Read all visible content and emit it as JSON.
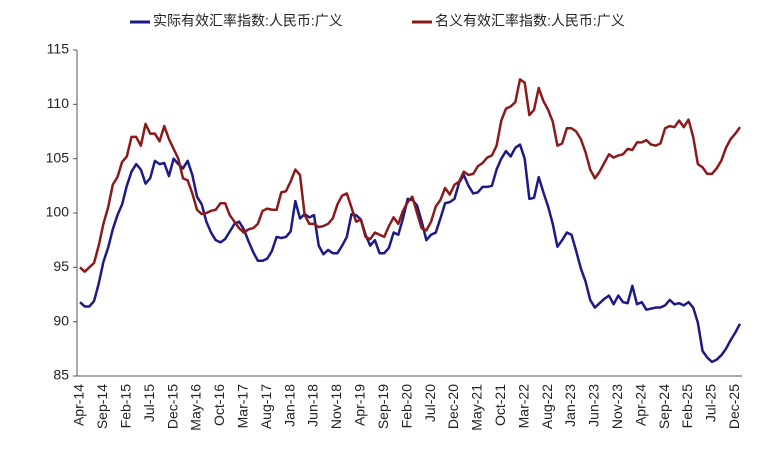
{
  "chart_data": {
    "type": "line",
    "categories": [
      "Apr-14",
      null,
      null,
      null,
      null,
      "Sep-14",
      null,
      null,
      null,
      null,
      "Feb-15",
      null,
      null,
      null,
      null,
      "Jul-15",
      null,
      null,
      null,
      null,
      "Dec-15",
      null,
      null,
      null,
      null,
      "May-16",
      null,
      null,
      null,
      null,
      "Oct-16",
      null,
      null,
      null,
      null,
      "Mar-17",
      null,
      null,
      null,
      null,
      "Aug-17",
      null,
      null,
      null,
      null,
      "Jan-18",
      null,
      null,
      null,
      null,
      "Jun-18",
      null,
      null,
      null,
      null,
      "Nov-18",
      null,
      null,
      null,
      null,
      "Apr-19",
      null,
      null,
      null,
      null,
      "Sep-19",
      null,
      null,
      null,
      null,
      "Feb-20",
      null,
      null,
      null,
      null,
      "Jul-20",
      null,
      null,
      null,
      null,
      "Dec-20",
      null,
      null,
      null,
      null,
      "May-21",
      null,
      null,
      null,
      null,
      "Oct-21",
      null,
      null,
      null,
      null,
      "Mar-22",
      null,
      null,
      null,
      null,
      "Aug-22",
      null,
      null,
      null,
      null,
      "Jan-23",
      null,
      null,
      null,
      null,
      "Jun-23",
      null,
      null,
      null,
      null,
      "Nov-23",
      null,
      null,
      null,
      null,
      "Apr-24",
      null,
      null,
      null,
      null,
      "Sep-24",
      null,
      null,
      null,
      null,
      "Feb-25",
      null,
      null,
      null,
      null,
      "Jul-25",
      null,
      null,
      null,
      null,
      "Dec-25",
      null
    ],
    "series": [
      {
        "name": "实际有效汇率指数:人民币:广义",
        "color": "#1c1a86",
        "values": [
          91.8,
          91.4,
          91.4,
          91.9,
          93.5,
          95.5,
          96.8,
          98.5,
          99.8,
          100.8,
          102.5,
          103.8,
          104.5,
          104.0,
          102.7,
          103.2,
          104.8,
          104.5,
          104.6,
          103.4,
          105.0,
          104.5,
          104.1,
          104.8,
          103.5,
          101.5,
          100.8,
          99.2,
          98.2,
          97.5,
          97.3,
          97.6,
          98.3,
          99.0,
          99.2,
          98.5,
          97.4,
          96.4,
          95.6,
          95.6,
          95.8,
          96.5,
          97.8,
          97.7,
          97.8,
          98.3,
          101.1,
          99.5,
          99.9,
          99.6,
          99.8,
          97.0,
          96.2,
          96.6,
          96.3,
          96.3,
          97.0,
          97.8,
          99.9,
          99.8,
          99.4,
          98.0,
          97.0,
          97.5,
          96.3,
          96.3,
          96.8,
          98.2,
          98.0,
          99.5,
          101.3,
          101.2,
          100.7,
          99.2,
          97.5,
          98.0,
          98.2,
          99.5,
          100.9,
          101.0,
          101.3,
          102.8,
          103.5,
          102.5,
          101.8,
          101.9,
          102.4,
          102.4,
          102.5,
          104.0,
          105.0,
          105.7,
          105.2,
          106.0,
          106.3,
          105.0,
          101.3,
          101.4,
          103.3,
          101.9,
          100.6,
          99.0,
          96.9,
          97.5,
          98.2,
          98.0,
          96.5,
          94.9,
          93.7,
          92.0,
          91.3,
          91.7,
          92.1,
          92.4,
          91.6,
          92.4,
          91.8,
          91.7,
          93.3,
          91.6,
          91.8,
          91.1,
          91.2,
          91.3,
          91.3,
          91.5,
          92.0,
          91.6,
          91.7,
          91.5,
          91.8,
          91.3,
          89.9,
          87.3,
          86.7,
          86.3,
          86.5,
          86.9,
          87.5,
          88.3,
          89.0,
          89.8
        ]
      },
      {
        "name": "名义有效汇率指数:人民币:广义",
        "color": "#8b1a1a",
        "values": [
          95.0,
          94.6,
          95.0,
          95.4,
          97.0,
          99.0,
          100.5,
          102.6,
          103.3,
          104.7,
          105.2,
          107.0,
          107.0,
          106.2,
          108.2,
          107.3,
          107.3,
          106.6,
          108.0,
          106.8,
          105.9,
          105.0,
          103.2,
          103.0,
          101.8,
          100.3,
          99.9,
          100.0,
          100.2,
          100.3,
          100.9,
          100.9,
          99.8,
          99.2,
          98.6,
          98.2,
          98.5,
          98.6,
          99.0,
          100.2,
          100.4,
          100.3,
          100.3,
          101.9,
          102.0,
          102.9,
          104.0,
          103.5,
          99.8,
          99.0,
          99.0,
          98.7,
          98.8,
          99.0,
          99.5,
          100.8,
          101.6,
          101.8,
          100.5,
          99.2,
          99.4,
          97.8,
          97.6,
          98.2,
          98.0,
          97.8,
          98.8,
          99.6,
          99.0,
          100.2,
          101.0,
          101.5,
          100.0,
          98.6,
          98.4,
          99.2,
          100.6,
          101.2,
          102.3,
          101.7,
          102.6,
          102.9,
          103.8,
          103.5,
          103.6,
          104.3,
          104.6,
          105.1,
          105.3,
          106.2,
          108.5,
          109.6,
          109.8,
          110.2,
          112.3,
          112.0,
          109.0,
          109.5,
          111.5,
          110.3,
          109.5,
          108.4,
          106.2,
          106.4,
          107.8,
          107.8,
          107.5,
          106.8,
          105.6,
          104.0,
          103.2,
          103.8,
          104.6,
          105.4,
          105.1,
          105.3,
          105.4,
          105.9,
          105.8,
          106.5,
          106.5,
          106.7,
          106.3,
          106.2,
          106.4,
          107.8,
          108.0,
          107.9,
          108.5,
          107.9,
          108.6,
          107.0,
          104.5,
          104.2,
          103.6,
          103.6,
          104.1,
          104.8,
          106.0,
          106.8,
          107.3,
          107.9
        ]
      }
    ],
    "ylim": [
      85,
      115
    ],
    "yticks": [
      85,
      90,
      95,
      100,
      105,
      110,
      115
    ],
    "grid": false
  }
}
